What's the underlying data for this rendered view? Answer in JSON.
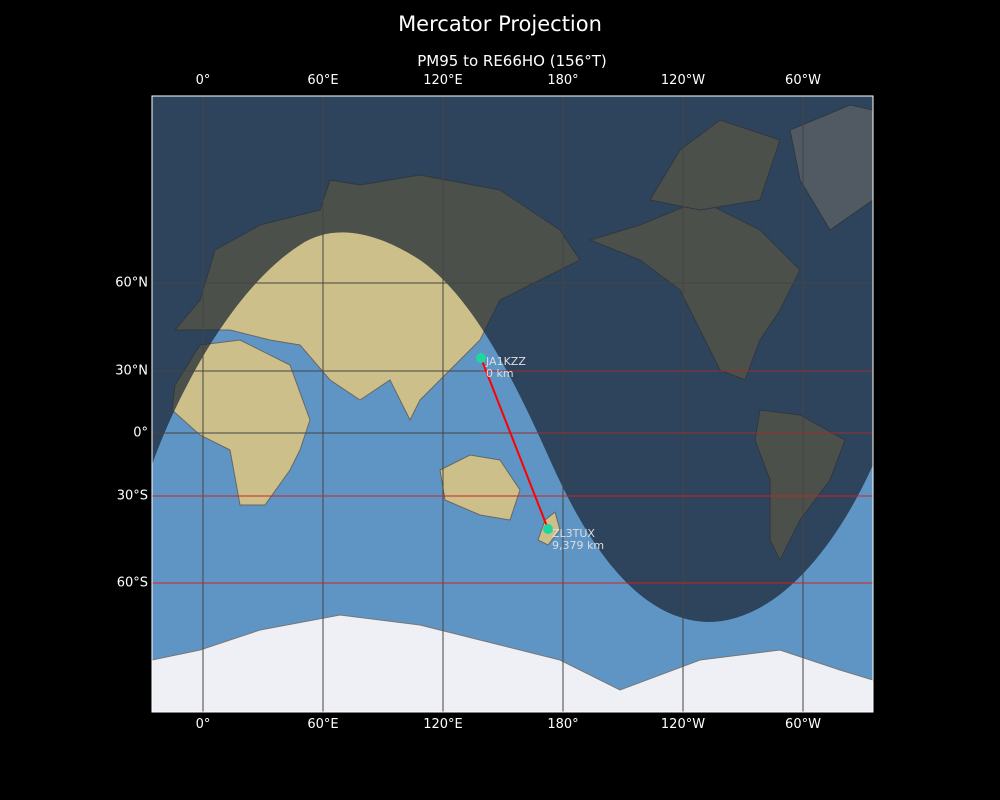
{
  "title": "Mercator Projection",
  "subtitle": "PM95 to RE66HO (156°T)",
  "lon_ticks": [
    "0°",
    "60°E",
    "120°E",
    "180°",
    "120°W",
    "60°W"
  ],
  "lat_ticks": [
    "60°N",
    "30°N",
    "0°",
    "30°S",
    "60°S"
  ],
  "path": {
    "start": {
      "call": "JA1KZZ",
      "distance": "0 km"
    },
    "end": {
      "call": "ZL3TUX",
      "distance": "9,379 km"
    },
    "line_color": "#ff0000",
    "marker_color": "#1fd6a0"
  },
  "colors": {
    "ocean": "#5b8fbf",
    "land": "#c9c08a",
    "night": "#1f2a36",
    "grid": "#333333",
    "highlight_lat": "#cc2222"
  }
}
